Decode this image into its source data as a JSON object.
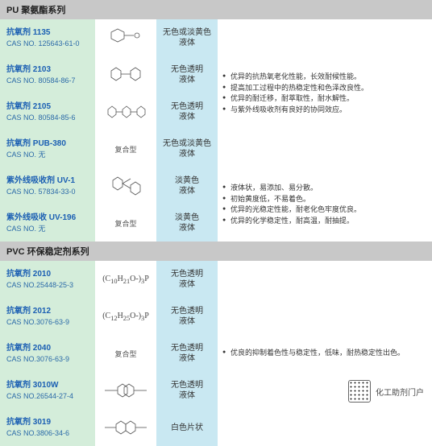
{
  "sections": [
    {
      "title": "PU 聚氨酯系列",
      "rows": [
        {
          "name": "抗氧剂 1135",
          "cas": "CAS NO. 125643-61-0",
          "struct": "svg1",
          "appear": "无色或淡黄色\n液体"
        },
        {
          "name": "抗氧剂 2103",
          "cas": "CAS NO. 80584-86-7",
          "struct": "svg2",
          "appear": "无色透明\n液体"
        },
        {
          "name": "抗氧剂 2105",
          "cas": "CAS NO. 80584-85-6",
          "struct": "svg3",
          "appear": "无色透明\n液体"
        },
        {
          "name": "抗氧剂 PUB-380",
          "cas": "CAS NO. 无",
          "struct": "复合型",
          "appear": "无色或淡黄色\n液体"
        },
        {
          "name": "紫外线吸收剂 UV-1",
          "cas": "CAS NO. 57834-33-0",
          "struct": "svg4",
          "appear": "淡黄色\n液体"
        },
        {
          "name": "紫外线吸收 UV-196",
          "cas": "CAS NO. 无",
          "struct": "复合型",
          "appear": "淡黄色\n液体"
        }
      ],
      "desc_span": {
        "from": 0,
        "to": 3,
        "bullets": [
          "优异的抗热氧老化性能，长效耐候性能。",
          "提高加工过程中的热稳定性和色泽改良性。",
          "优异的耐迁移，耐萃取性，耐水解性。",
          "与紫外线吸收剂有良好的协同效应。"
        ]
      },
      "desc_span2": {
        "from": 4,
        "to": 5,
        "bullets": [
          "液体状，易添加、易分散。",
          "初始黄度低，不易着色。",
          "优异的光稳定性能，耐老化色牢度优良。",
          "优异的化学稳定性，耐高温，耐抽提。"
        ]
      }
    },
    {
      "title": "PVC 环保稳定剂系列",
      "rows": [
        {
          "name": "抗氧剂 2010",
          "cas": "CAS NO.25448-25-3",
          "struct": "(C₁₀H₂₁O-)₃P",
          "appear": "无色透明\n液体"
        },
        {
          "name": "抗氧剂 2012",
          "cas": "CAS NO.3076-63-9",
          "struct": "(C₁₂H₂₅O-)₃P",
          "appear": "无色透明\n液体"
        },
        {
          "name": "抗氧剂 2040",
          "cas": "CAS NO.3076-63-9",
          "struct": "复合型",
          "appear": "无色透明\n液体"
        },
        {
          "name": "抗氧剂 3010W",
          "cas": "CAS NO.26544-27-4",
          "struct": "svg5",
          "appear": "无色透明\n液体"
        },
        {
          "name": "抗氧剂 3019",
          "cas": "CAS NO.3806-34-6",
          "struct": "svg6",
          "appear": "白色片状"
        }
      ],
      "desc_span": {
        "from": 0,
        "to": 4,
        "bullets": [
          "优良的抑制着色性与稳定性，低味，耐热稳定性出色。"
        ]
      }
    }
  ],
  "watermark": "化工助剂门户",
  "colors": {
    "header_bg": "#c8c8c8",
    "name_bg": "#d4edda",
    "appear_bg": "#c9e8f2",
    "name_text": "#1b5fb3"
  }
}
